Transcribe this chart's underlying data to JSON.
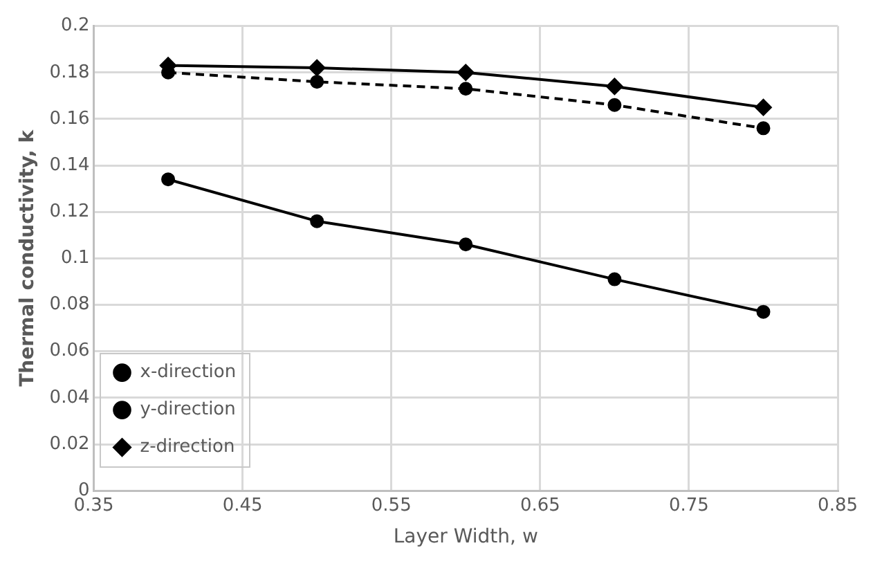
{
  "chart_data": {
    "type": "line",
    "xlabel": "Layer Width, w",
    "ylabel": "Thermal conductivity, k",
    "x": [
      0.4,
      0.5,
      0.6,
      0.7,
      0.8
    ],
    "xlim": [
      0.35,
      0.85
    ],
    "xticks": [
      0.35,
      0.45,
      0.55,
      0.65,
      0.75,
      0.85
    ],
    "ylim": [
      0,
      0.2
    ],
    "yticks": [
      0,
      0.02,
      0.04,
      0.06,
      0.08,
      0.1,
      0.12,
      0.14,
      0.16,
      0.18,
      0.2
    ],
    "grid": true,
    "legend": "bottom left",
    "series": [
      {
        "name": "x-direction",
        "color": "#000000",
        "values": [
          0.134,
          0.116,
          0.106,
          0.091,
          0.077
        ],
        "marker": "circle",
        "line_style": "solid"
      },
      {
        "name": "y-direction",
        "color": "#000000",
        "values": [
          0.18,
          0.176,
          0.173,
          0.166,
          0.156
        ],
        "marker": "circle",
        "line_style": "dashed"
      },
      {
        "name": "z-direction",
        "color": "#000000",
        "values": [
          0.183,
          0.182,
          0.18,
          0.174,
          0.165
        ],
        "marker": "diamond",
        "line_style": "solid"
      }
    ]
  }
}
